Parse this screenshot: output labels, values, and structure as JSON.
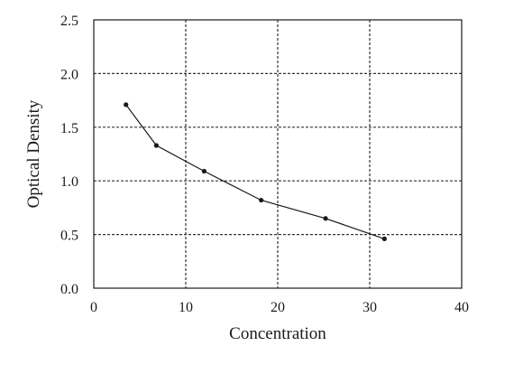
{
  "chart_data": {
    "type": "line",
    "title": "",
    "xlabel": "Concentration",
    "ylabel": "Optical Density",
    "xlim": [
      0,
      40
    ],
    "ylim": [
      0,
      2.5
    ],
    "x_ticks": [
      "0",
      "10",
      "20",
      "30",
      "40"
    ],
    "y_ticks": [
      "0.0",
      "0.5",
      "1.0",
      "1.5",
      "2.0",
      "2.5"
    ],
    "grid": "dashed",
    "legend": "none",
    "series": [
      {
        "x": [
          3.5,
          6.8,
          12.0,
          18.2,
          25.2,
          31.6
        ],
        "y": [
          1.71,
          1.33,
          1.09,
          0.82,
          0.65,
          0.46
        ]
      }
    ]
  },
  "colors": {
    "line": "#1a1a1a",
    "grid": "#333333",
    "axis": "#1a1a1a"
  }
}
